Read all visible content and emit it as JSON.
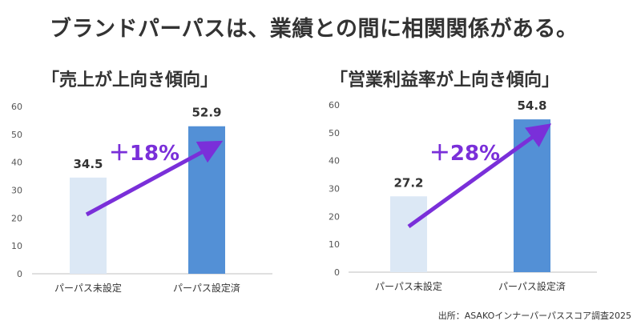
{
  "page": {
    "title": "ブランドパーパスは、業績との間に相関関係がある。",
    "source": "出所：ASAKOインナーパーパススコア調査2025"
  },
  "colors": {
    "bar_light": "#dce8f5",
    "bar_dark": "#5390d6",
    "arrow": "#7a2fd9",
    "text": "#333333",
    "axis_text": "#555555",
    "axis_line": "#bfbfbf"
  },
  "chart_data": [
    {
      "type": "bar",
      "title": "「売上が上向き傾向」",
      "categories": [
        "パーパス未設定",
        "パーパス設定済"
      ],
      "values": [
        34.5,
        52.9
      ],
      "value_labels": [
        "34.5",
        "52.9"
      ],
      "yticks": [
        "0",
        "10",
        "20",
        "30",
        "40",
        "50",
        "60"
      ],
      "ylim": [
        0,
        60
      ],
      "grid": false,
      "annotation": "＋18%"
    },
    {
      "type": "bar",
      "title": "「営業利益率が上向き傾向」",
      "categories": [
        "パーパス未設定",
        "パーパス設定済"
      ],
      "values": [
        27.2,
        54.8
      ],
      "value_labels": [
        "27.2",
        "54.8"
      ],
      "yticks": [
        "0",
        "10",
        "20",
        "30",
        "40",
        "50",
        "60"
      ],
      "ylim": [
        0,
        60
      ],
      "grid": false,
      "annotation": "＋28%"
    }
  ]
}
